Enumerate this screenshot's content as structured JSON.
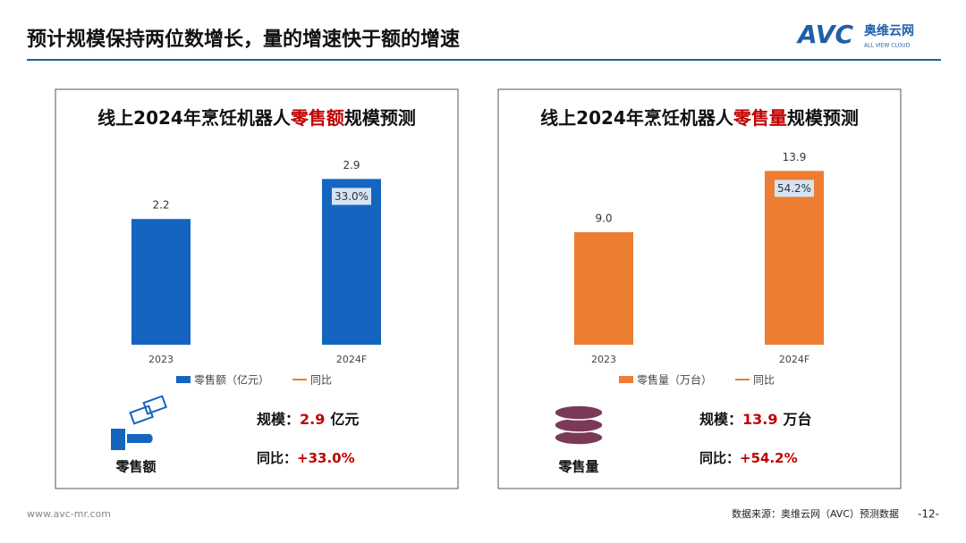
{
  "header": {
    "title": "预计规模保持两位数增长，量的增速快于额的增速",
    "logo": "AVC",
    "logo_cn": "奥维云网",
    "logo_en": "ALL VIEW CLOUD"
  },
  "footer": {
    "url": "www.avc-mr.com",
    "source": "数据来源：奥维云网（AVC）预测数据",
    "page": "-12-"
  },
  "chart_data": [
    {
      "type": "bar",
      "title": [
        "线上2024年烹饪机器人",
        "零售额",
        "规模预测"
      ],
      "highlight_color": "#c00000",
      "categories": [
        "2023",
        "2024F"
      ],
      "ylim": [
        0,
        3.5
      ],
      "series": [
        {
          "name": "零售额（亿元）",
          "color": "#1565c0",
          "values": [
            2.2,
            2.9
          ]
        },
        {
          "name": "同比",
          "color": "#ed7d31",
          "axis": "y2",
          "values": [
            null,
            33.0
          ],
          "value_labels": [
            null,
            "33.0%"
          ]
        }
      ],
      "stats": {
        "icon_label": "零售额",
        "scale_label": "规模：",
        "scale_value": "2.9",
        "scale_unit": "亿元",
        "yoy_label": "同比：",
        "yoy_value": "+33.0%"
      }
    },
    {
      "type": "bar",
      "title": [
        "线上2024年烹饪机器人",
        "零售量",
        "规模预测"
      ],
      "highlight_color": "#c00000",
      "categories": [
        "2023",
        "2024F"
      ],
      "ylim": [
        0,
        16
      ],
      "series": [
        {
          "name": "零售量（万台）",
          "color": "#ed7d31",
          "values": [
            9.0,
            13.9
          ],
          "value_labels": [
            "9.0",
            "13.9"
          ]
        },
        {
          "name": "同比",
          "color": "#ed7d31",
          "axis": "y2",
          "values": [
            null,
            54.2
          ],
          "value_labels": [
            null,
            "54.2%"
          ]
        }
      ],
      "stats": {
        "icon_label": "零售量",
        "scale_label": "规模：",
        "scale_value": "13.9",
        "scale_unit": "万台",
        "yoy_label": "同比：",
        "yoy_value": "+54.2%"
      }
    }
  ]
}
